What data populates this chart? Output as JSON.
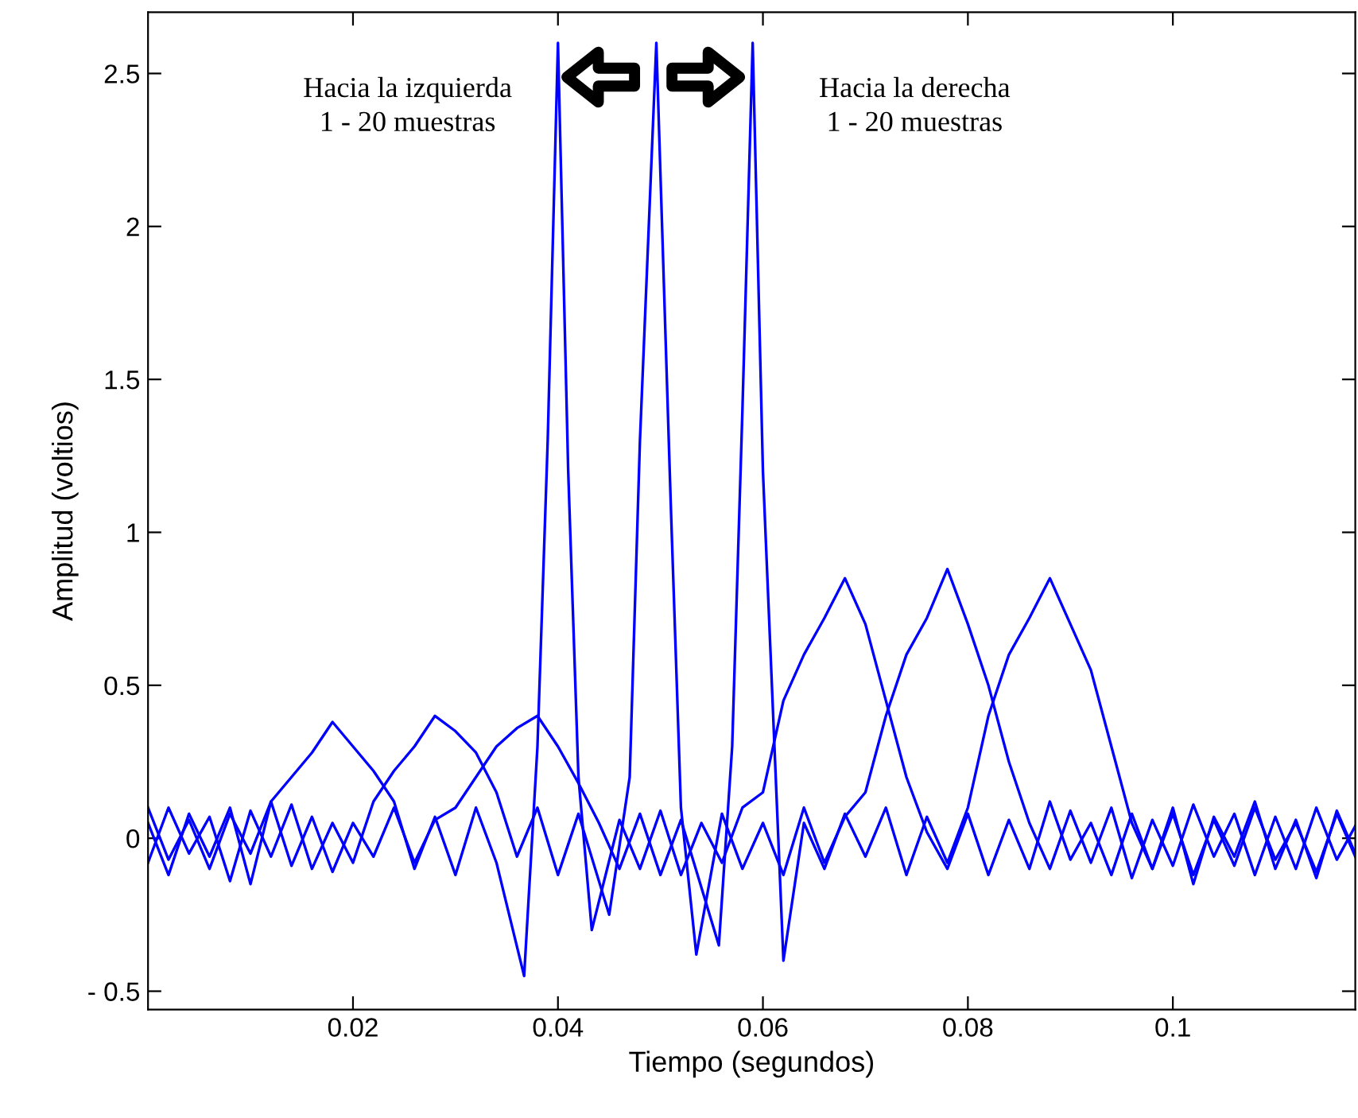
{
  "chart_data": {
    "type": "line",
    "xlabel": "Tiempo (segundos)",
    "ylabel": "Amplitud (voltios)",
    "annotations": [
      "Hacia la izquierda\n1 - 20 muestras",
      "Hacia la derecha\n1 - 20 muestras"
    ],
    "xlim": [
      0,
      0.1178
    ],
    "ylim": [
      -0.56,
      2.7
    ],
    "xticks": [
      0.02,
      0.04,
      0.06,
      0.08,
      0.1
    ],
    "yticks": [
      {
        "value": -0.5,
        "label": "- 0.5"
      },
      0,
      0.5,
      1,
      1.5,
      2,
      2.5
    ],
    "grid": false,
    "legend": false,
    "marker": "none",
    "line_style": "solid",
    "series": [
      {
        "color": "#0000ff",
        "x": [
          0,
          0.002,
          0.004,
          0.006,
          0.008,
          0.01,
          0.012,
          0.014,
          0.016,
          0.018,
          0.02,
          0.022,
          0.024,
          0.026,
          0.028,
          0.03,
          0.032,
          0.034,
          0.0367,
          0.038,
          0.039,
          0.04,
          0.041,
          0.042,
          0.0433,
          0.046,
          0.048,
          0.05,
          0.052,
          0.054,
          0.056,
          0.058,
          0.06,
          0.062,
          0.064,
          0.066,
          0.068,
          0.07,
          0.072,
          0.074,
          0.076,
          0.078,
          0.08,
          0.082,
          0.084,
          0.086,
          0.088,
          0.09,
          0.092,
          0.094,
          0.096,
          0.098,
          0.1,
          0.102,
          0.104,
          0.106,
          0.108,
          0.11,
          0.112,
          0.114,
          0.116,
          0.1178
        ],
        "values": [
          0.05,
          -0.12,
          0.08,
          -0.06,
          0.1,
          -0.15,
          0.12,
          0.2,
          0.28,
          0.38,
          0.3,
          0.22,
          0.12,
          -0.1,
          0.07,
          -0.12,
          0.1,
          -0.08,
          -0.45,
          0.3,
          1.3,
          2.6,
          1.2,
          0.2,
          -0.3,
          0.06,
          -0.1,
          0.09,
          -0.12,
          0.05,
          -0.08,
          0.1,
          0.15,
          0.45,
          0.6,
          0.72,
          0.85,
          0.7,
          0.45,
          0.2,
          0.02,
          -0.1,
          0.08,
          -0.12,
          0.06,
          -0.1,
          0.12,
          -0.07,
          0.05,
          -0.12,
          0.08,
          -0.1,
          0.1,
          -0.15,
          0.07,
          -0.06,
          0.12,
          -0.1,
          0.06,
          -0.13,
          0.09,
          -0.05
        ]
      },
      {
        "color": "#0000ff",
        "x": [
          0,
          0.002,
          0.004,
          0.006,
          0.008,
          0.01,
          0.012,
          0.014,
          0.016,
          0.018,
          0.02,
          0.022,
          0.024,
          0.026,
          0.028,
          0.03,
          0.032,
          0.034,
          0.036,
          0.038,
          0.04,
          0.042,
          0.045,
          0.047,
          0.048,
          0.0496,
          0.051,
          0.052,
          0.0535,
          0.056,
          0.058,
          0.06,
          0.062,
          0.064,
          0.066,
          0.068,
          0.07,
          0.072,
          0.074,
          0.076,
          0.078,
          0.08,
          0.082,
          0.084,
          0.086,
          0.088,
          0.09,
          0.092,
          0.094,
          0.096,
          0.098,
          0.1,
          0.102,
          0.104,
          0.106,
          0.108,
          0.11,
          0.112,
          0.114,
          0.116,
          0.1178
        ],
        "values": [
          -0.08,
          0.1,
          -0.05,
          0.07,
          -0.14,
          0.09,
          -0.06,
          0.11,
          -0.1,
          0.05,
          -0.08,
          0.12,
          0.22,
          0.3,
          0.4,
          0.35,
          0.28,
          0.15,
          -0.06,
          0.1,
          -0.12,
          0.08,
          -0.25,
          0.2,
          1.3,
          2.6,
          1.1,
          0.1,
          -0.38,
          0.08,
          -0.1,
          0.05,
          -0.12,
          0.1,
          -0.08,
          0.07,
          0.15,
          0.4,
          0.6,
          0.72,
          0.88,
          0.7,
          0.5,
          0.25,
          0.05,
          -0.1,
          0.09,
          -0.08,
          0.1,
          -0.13,
          0.06,
          -0.09,
          0.11,
          -0.06,
          0.08,
          -0.12,
          0.07,
          -0.1,
          0.1,
          -0.07,
          0.04
        ]
      },
      {
        "color": "#0000ff",
        "x": [
          0,
          0.002,
          0.004,
          0.006,
          0.008,
          0.01,
          0.012,
          0.014,
          0.016,
          0.018,
          0.02,
          0.022,
          0.024,
          0.026,
          0.028,
          0.03,
          0.032,
          0.034,
          0.036,
          0.038,
          0.04,
          0.042,
          0.044,
          0.046,
          0.048,
          0.05,
          0.052,
          0.0557,
          0.057,
          0.058,
          0.059,
          0.06,
          0.062,
          0.064,
          0.066,
          0.068,
          0.07,
          0.072,
          0.074,
          0.076,
          0.078,
          0.08,
          0.082,
          0.084,
          0.086,
          0.088,
          0.09,
          0.092,
          0.094,
          0.096,
          0.098,
          0.1,
          0.102,
          0.104,
          0.106,
          0.108,
          0.11,
          0.112,
          0.114,
          0.116,
          0.1178
        ],
        "values": [
          0.1,
          -0.07,
          0.06,
          -0.1,
          0.08,
          -0.05,
          0.12,
          -0.09,
          0.07,
          -0.11,
          0.05,
          -0.06,
          0.1,
          -0.08,
          0.06,
          0.1,
          0.2,
          0.3,
          0.36,
          0.4,
          0.3,
          0.18,
          0.05,
          -0.1,
          0.08,
          -0.12,
          0.06,
          -0.35,
          0.3,
          1.4,
          2.6,
          1.2,
          -0.4,
          0.05,
          -0.1,
          0.08,
          -0.06,
          0.1,
          -0.12,
          0.07,
          -0.08,
          0.1,
          0.4,
          0.6,
          0.72,
          0.85,
          0.7,
          0.55,
          0.3,
          0.05,
          -0.1,
          0.08,
          -0.12,
          0.06,
          -0.09,
          0.1,
          -0.07,
          0.05,
          -0.11,
          0.08,
          -0.06
        ]
      }
    ]
  }
}
